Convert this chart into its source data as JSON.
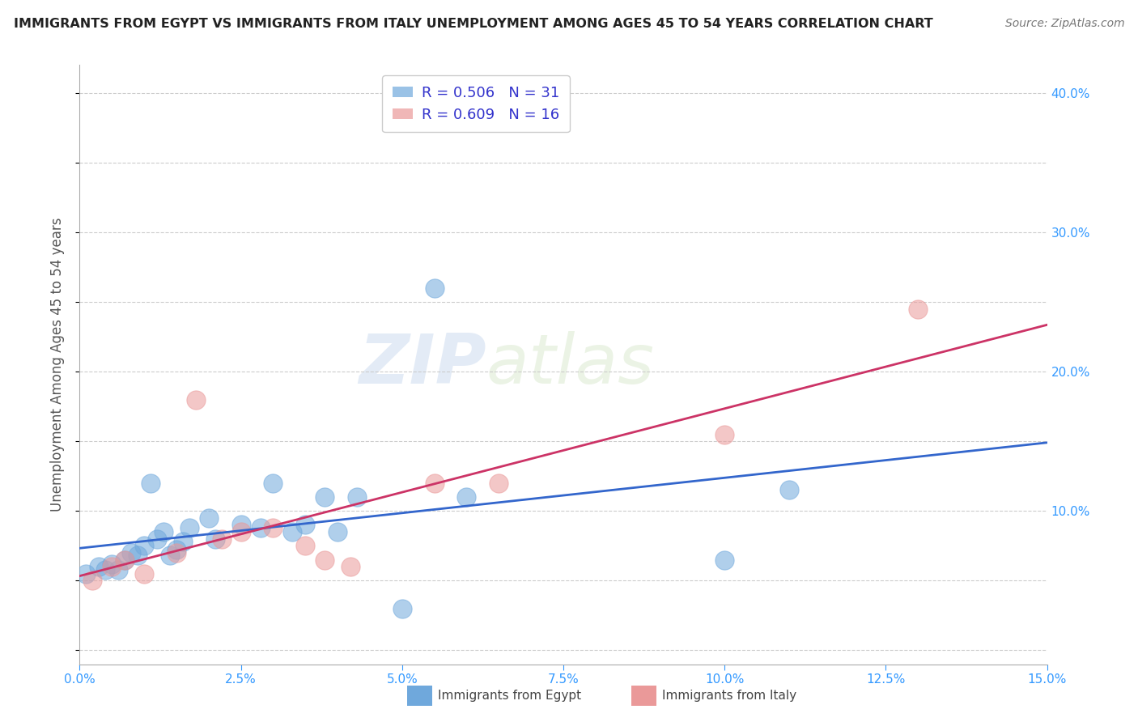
{
  "title": "IMMIGRANTS FROM EGYPT VS IMMIGRANTS FROM ITALY UNEMPLOYMENT AMONG AGES 45 TO 54 YEARS CORRELATION CHART",
  "source": "Source: ZipAtlas.com",
  "ylabel": "Unemployment Among Ages 45 to 54 years",
  "xlim": [
    0.0,
    0.15
  ],
  "ylim": [
    -0.01,
    0.42
  ],
  "egypt_color": "#6fa8dc",
  "italy_color": "#ea9999",
  "egypt_line_color": "#3366cc",
  "italy_line_color": "#cc3366",
  "egypt_R": 0.506,
  "egypt_N": 31,
  "italy_R": 0.609,
  "italy_N": 16,
  "egypt_x": [
    0.001,
    0.003,
    0.004,
    0.005,
    0.006,
    0.007,
    0.008,
    0.009,
    0.01,
    0.011,
    0.012,
    0.013,
    0.014,
    0.015,
    0.016,
    0.017,
    0.02,
    0.021,
    0.025,
    0.028,
    0.03,
    0.033,
    0.035,
    0.038,
    0.04,
    0.043,
    0.05,
    0.055,
    0.06,
    0.1,
    0.11
  ],
  "egypt_y": [
    0.055,
    0.06,
    0.058,
    0.062,
    0.058,
    0.065,
    0.07,
    0.068,
    0.075,
    0.12,
    0.08,
    0.085,
    0.068,
    0.072,
    0.078,
    0.088,
    0.095,
    0.08,
    0.09,
    0.088,
    0.12,
    0.085,
    0.09,
    0.11,
    0.085,
    0.11,
    0.03,
    0.26,
    0.11,
    0.065,
    0.115
  ],
  "italy_x": [
    0.002,
    0.005,
    0.007,
    0.01,
    0.015,
    0.018,
    0.022,
    0.025,
    0.03,
    0.035,
    0.038,
    0.042,
    0.055,
    0.065,
    0.1,
    0.13
  ],
  "italy_y": [
    0.05,
    0.06,
    0.065,
    0.055,
    0.07,
    0.18,
    0.08,
    0.085,
    0.088,
    0.075,
    0.065,
    0.06,
    0.12,
    0.12,
    0.155,
    0.245
  ],
  "watermark_zip": "ZIP",
  "watermark_atlas": "atlas",
  "background_color": "#ffffff",
  "grid_color": "#cccccc",
  "tick_color": "#3399ff",
  "label_color": "#555555",
  "title_color": "#222222",
  "source_color": "#777777"
}
